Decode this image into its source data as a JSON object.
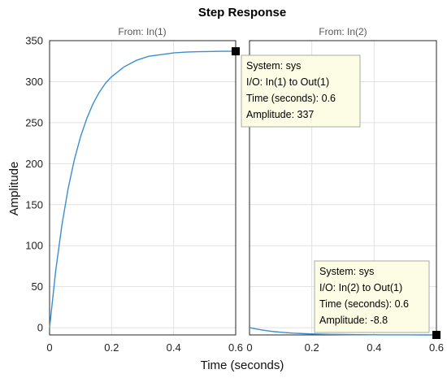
{
  "chart_data": {
    "type": "line",
    "title": "Step Response",
    "xlabel": "Time (seconds)",
    "ylabel": "Amplitude",
    "xlim": [
      0,
      0.6
    ],
    "ylim": [
      -8.8,
      350
    ],
    "xticks": [
      0,
      0.2,
      0.4,
      0.6
    ],
    "yticks": [
      0,
      50,
      100,
      150,
      200,
      250,
      300,
      350
    ],
    "grid": true,
    "line_color": "#3b8fd1",
    "panels": [
      {
        "subtitle": "From: In(1)",
        "series": {
          "x": [
            0,
            0.02,
            0.04,
            0.06,
            0.08,
            0.1,
            0.12,
            0.14,
            0.16,
            0.18,
            0.2,
            0.24,
            0.28,
            0.32,
            0.36,
            0.4,
            0.44,
            0.48,
            0.52,
            0.56,
            0.6
          ],
          "y": [
            0,
            70,
            126,
            170,
            205,
            233,
            255,
            273,
            287,
            298,
            306,
            318,
            326,
            331,
            333,
            335,
            336,
            336.5,
            336.8,
            337,
            337
          ]
        },
        "datatip": {
          "x": 0.6,
          "y": 337,
          "lines": [
            "System: sys",
            "I/O: In(1) to Out(1)",
            "Time (seconds): 0.6",
            "Amplitude: 337"
          ]
        }
      },
      {
        "subtitle": "From: In(2)",
        "series": {
          "x": [
            0,
            0.02,
            0.04,
            0.06,
            0.08,
            0.1,
            0.14,
            0.18,
            0.22,
            0.26,
            0.3,
            0.35,
            0.4,
            0.45,
            0.5,
            0.55,
            0.6
          ],
          "y": [
            0,
            -1.5,
            -2.8,
            -3.9,
            -4.8,
            -5.5,
            -6.6,
            -7.3,
            -7.8,
            -8.1,
            -8.3,
            -8.5,
            -8.6,
            -8.7,
            -8.75,
            -8.8,
            -8.8
          ]
        },
        "datatip": {
          "x": 0.6,
          "y": -8.8,
          "lines": [
            "System: sys",
            "I/O: In(2) to Out(1)",
            "Time (seconds): 0.6",
            "Amplitude: -8.8"
          ]
        }
      }
    ]
  }
}
